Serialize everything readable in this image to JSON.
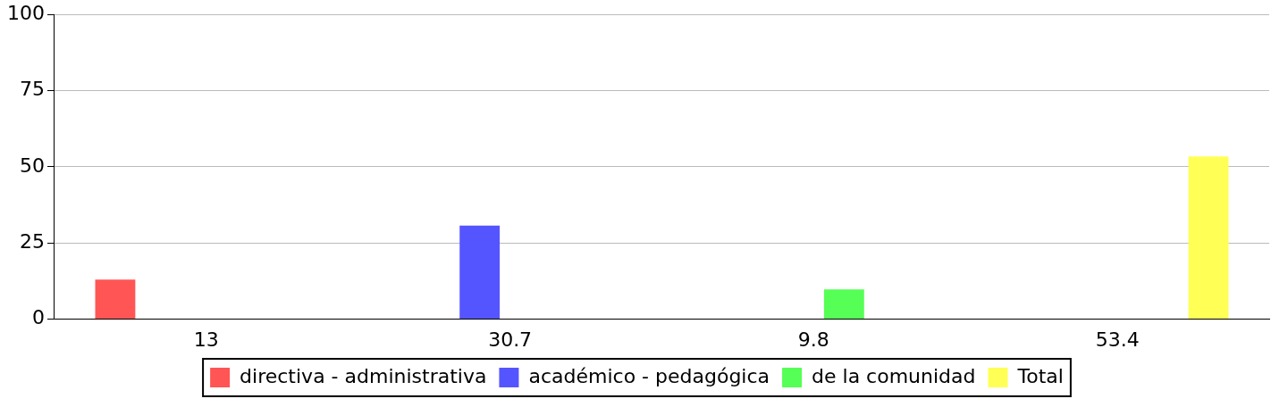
{
  "chart_data": {
    "type": "bar",
    "categories": [
      "13",
      "30.7",
      "9.8",
      "53.4"
    ],
    "series": [
      {
        "name": "directiva - administrativa",
        "color": "#ff5555",
        "values": [
          13,
          null,
          null,
          null
        ]
      },
      {
        "name": "académico - pedagógica",
        "color": "#5555ff",
        "values": [
          null,
          30.7,
          null,
          null
        ]
      },
      {
        "name": "de la comunidad",
        "color": "#55ff55",
        "values": [
          null,
          null,
          9.8,
          null
        ]
      },
      {
        "name": "Total",
        "color": "#ffff55",
        "values": [
          null,
          null,
          null,
          53.4
        ]
      }
    ],
    "ylim": [
      0,
      100
    ],
    "yticks": [
      0,
      25,
      50,
      75,
      100
    ],
    "grid": "y",
    "legend": "bottom"
  }
}
